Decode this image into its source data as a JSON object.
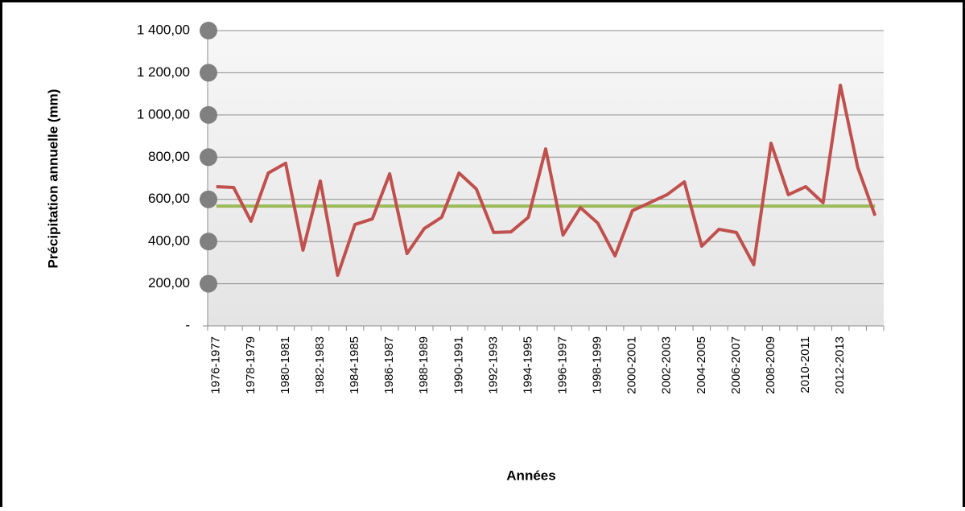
{
  "chart_data": {
    "type": "line",
    "y_label": "Précipitation annuelle (mm)",
    "x_label": "Années",
    "categories": [
      "1976-1977",
      null,
      "1978-1979",
      null,
      "1980-1981",
      null,
      "1982-1983",
      null,
      "1984-1985",
      null,
      "1986-1987",
      null,
      "1988-1989",
      null,
      "1990-1991",
      null,
      "1992-1993",
      null,
      "1994-1995",
      null,
      "1996-1997",
      null,
      "1998-1999",
      null,
      "2000-2001",
      null,
      "2002-2003",
      null,
      "2004-2005",
      null,
      "2006-2007",
      null,
      "2008-2009",
      null,
      "2010-2011",
      null,
      "2012-2013",
      null,
      null
    ],
    "series": [
      {
        "color": "#c0504d",
        "values": [
          660,
          656,
          496,
          725,
          771,
          359,
          687,
          240,
          481,
          507,
          721,
          343,
          462,
          515,
          725,
          649,
          443,
          446,
          515,
          839,
          431,
          561,
          488,
          332,
          546,
          584,
          622,
          683,
          378,
          458,
          443,
          290,
          866,
          622,
          660,
          584,
          1141,
          752,
          523
        ]
      },
      {
        "color": "#9bbb59",
        "values": [
          568,
          568,
          568,
          568,
          568,
          568,
          568,
          568,
          568,
          568,
          568,
          568,
          568,
          568,
          568,
          568,
          568,
          568,
          568,
          568,
          568,
          568,
          568,
          568,
          568,
          568,
          568,
          568,
          568,
          568,
          568,
          568,
          568,
          568,
          568,
          568,
          568,
          568,
          568
        ]
      }
    ],
    "ylim": [
      0,
      1400
    ],
    "yticks": [
      {
        "value": 0,
        "label": "-"
      },
      {
        "value": 200,
        "label": "200,00"
      },
      {
        "value": 400,
        "label": "400,00"
      },
      {
        "value": 600,
        "label": "600,00"
      },
      {
        "value": 800,
        "label": "800,00"
      },
      {
        "value": 1000,
        "label": "1 000,00"
      },
      {
        "value": 1200,
        "label": "1 200,00"
      },
      {
        "value": 1400,
        "label": "1 400,00"
      }
    ],
    "grid": true
  }
}
